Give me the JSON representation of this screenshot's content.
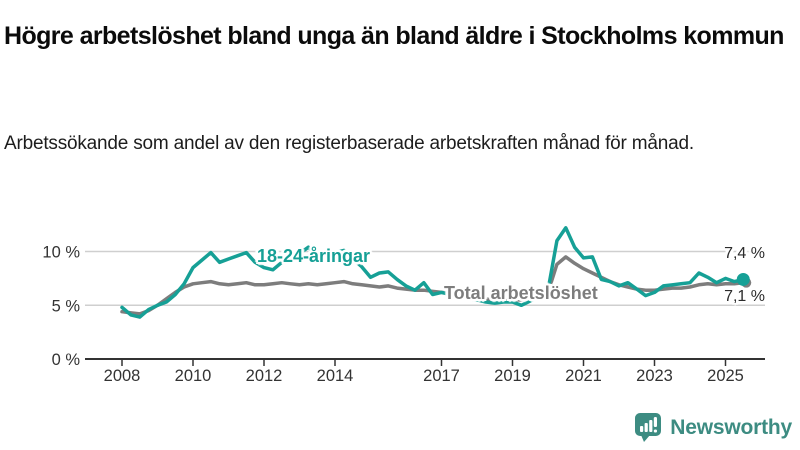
{
  "header": {
    "title": "Högre arbetslöshet bland unga än bland äldre i Stockholms kommun",
    "subtitle": "Arbetssökande som andel av den registerbaserade arbetskraften månad för månad."
  },
  "colors": {
    "young_line": "#16a096",
    "total_line": "#7d7d7d",
    "grid": "#cfcfcf",
    "axis": "#333333",
    "tick_text": "#333333",
    "end_label_text": "#2b2b2b",
    "brand": "#3d8c82"
  },
  "chart_data": {
    "type": "line",
    "title": "Högre arbetslöshet bland unga än bland äldre i Stockholms kommun",
    "subtitle": "Arbetssökande som andel av den registerbaserade arbetskraften månad för månad.",
    "unit": "%",
    "grid": "horizontal",
    "legend_position": "inline-labels",
    "x_range": [
      2007.2,
      2026.2
    ],
    "y_range": [
      0,
      13.4
    ],
    "x_ticks": [
      2008,
      2010,
      2012,
      2014,
      2017,
      2019,
      2021,
      2023,
      2025
    ],
    "y_ticks": [
      {
        "value": 0,
        "label": "0 %"
      },
      {
        "value": 5,
        "label": "5 %"
      },
      {
        "value": 10,
        "label": "10 %"
      }
    ],
    "x": [
      2008,
      2008.25,
      2008.5,
      2008.75,
      2009,
      2009.25,
      2009.5,
      2009.75,
      2010,
      2010.25,
      2010.5,
      2010.75,
      2011,
      2011.25,
      2011.5,
      2011.75,
      2012,
      2012.25,
      2012.5,
      2012.75,
      2013,
      2013.25,
      2013.5,
      2013.75,
      2014,
      2014.25,
      2014.5,
      2014.75,
      2015,
      2015.25,
      2015.5,
      2015.75,
      2016,
      2016.25,
      2016.5,
      2016.75,
      2017,
      2017.25,
      2017.5,
      2017.75,
      2018,
      2018.25,
      2018.5,
      2018.75,
      2019,
      2019.25,
      2019.5,
      2019.75,
      2020,
      2020.25,
      2020.5,
      2020.75,
      2021,
      2021.25,
      2021.5,
      2021.75,
      2022,
      2022.25,
      2022.5,
      2022.75,
      2023,
      2023.25,
      2023.5,
      2023.75,
      2024,
      2024.25,
      2024.5,
      2024.75,
      2025,
      2025.25,
      2025.5
    ],
    "series": [
      {
        "name": "Total arbetslöshet",
        "color": "#7d7d7d",
        "end_label": "7,1 %",
        "end_value": 7.1,
        "values": [
          4.4,
          4.3,
          4.2,
          4.5,
          5.0,
          5.6,
          6.2,
          6.7,
          7.0,
          7.1,
          7.2,
          7.0,
          6.9,
          7.0,
          7.1,
          6.9,
          6.9,
          7.0,
          7.1,
          7.0,
          6.9,
          7.0,
          6.9,
          7.0,
          7.1,
          7.2,
          7.0,
          6.9,
          6.8,
          6.7,
          6.8,
          6.6,
          6.5,
          6.4,
          6.4,
          6.3,
          6.2,
          6.1,
          6.0,
          5.9,
          5.8,
          5.6,
          5.5,
          5.5,
          5.5,
          5.5,
          5.6,
          5.8,
          6.2,
          8.8,
          9.5,
          8.9,
          8.4,
          8.0,
          7.6,
          7.2,
          6.9,
          6.7,
          6.5,
          6.4,
          6.4,
          6.5,
          6.6,
          6.6,
          6.7,
          6.9,
          7.0,
          6.9,
          7.0,
          7.0,
          7.1
        ]
      },
      {
        "name": "18-24-åringar",
        "color": "#16a096",
        "end_label": "7,4 %",
        "end_value": 7.4,
        "values": [
          4.8,
          4.1,
          3.9,
          4.6,
          5.0,
          5.3,
          6.0,
          7.0,
          8.5,
          9.2,
          9.9,
          9.0,
          9.3,
          9.6,
          9.9,
          9.0,
          8.5,
          8.3,
          9.0,
          9.5,
          9.8,
          10.4,
          9.6,
          9.2,
          9.9,
          10.1,
          9.3,
          8.6,
          7.6,
          8.0,
          8.1,
          7.4,
          6.8,
          6.4,
          7.1,
          6.0,
          6.2,
          6.0,
          5.8,
          5.6,
          5.5,
          5.3,
          5.2,
          5.3,
          5.3,
          5.0,
          5.4,
          5.8,
          6.4,
          11.0,
          12.2,
          10.4,
          9.4,
          9.5,
          7.4,
          7.2,
          6.8,
          7.1,
          6.5,
          5.9,
          6.2,
          6.8,
          6.9,
          7.0,
          7.1,
          8.0,
          7.6,
          7.1,
          7.5,
          7.2,
          7.4
        ]
      }
    ]
  },
  "footer": {
    "brand_label": "Newsworthy"
  }
}
